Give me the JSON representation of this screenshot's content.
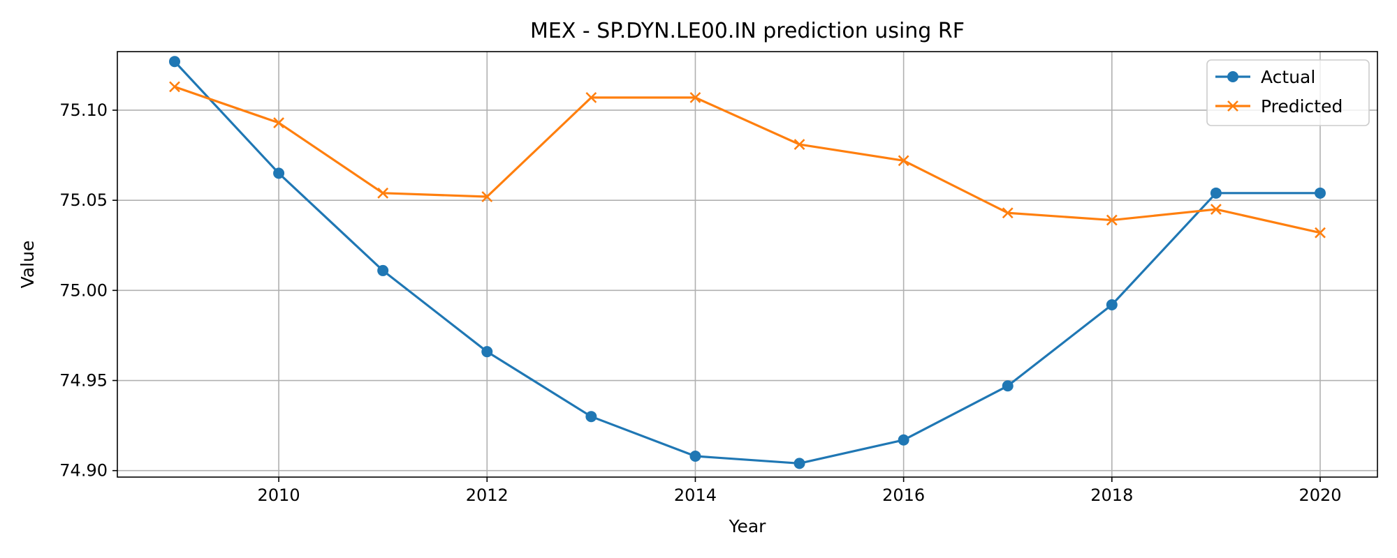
{
  "chart_data": {
    "type": "line",
    "title": "MEX - SP.DYN.LE00.IN prediction using RF",
    "xlabel": "Year",
    "ylabel": "Value",
    "x": [
      2009,
      2010,
      2011,
      2012,
      2013,
      2014,
      2015,
      2016,
      2017,
      2018,
      2019,
      2020
    ],
    "xlim": [
      2008.45,
      2020.55
    ],
    "ylim": [
      74.8964,
      75.1325
    ],
    "xticks": [
      "2010",
      "2012",
      "2014",
      "2016",
      "2018",
      "2020"
    ],
    "yticks": [
      "74.90",
      "74.95",
      "75.00",
      "75.05",
      "75.10"
    ],
    "grid": true,
    "legend_position": "top-right",
    "series": [
      {
        "name": "Actual",
        "color": "#1f77b4",
        "marker": "circle",
        "values": [
          75.127,
          75.065,
          75.011,
          74.966,
          74.93,
          74.908,
          74.904,
          74.917,
          74.947,
          74.992,
          75.054,
          75.054
        ]
      },
      {
        "name": "Predicted",
        "color": "#ff7f0e",
        "marker": "x",
        "values": [
          75.113,
          75.093,
          75.054,
          75.052,
          75.107,
          75.107,
          75.081,
          75.072,
          75.043,
          75.039,
          75.045,
          75.032
        ]
      }
    ]
  }
}
